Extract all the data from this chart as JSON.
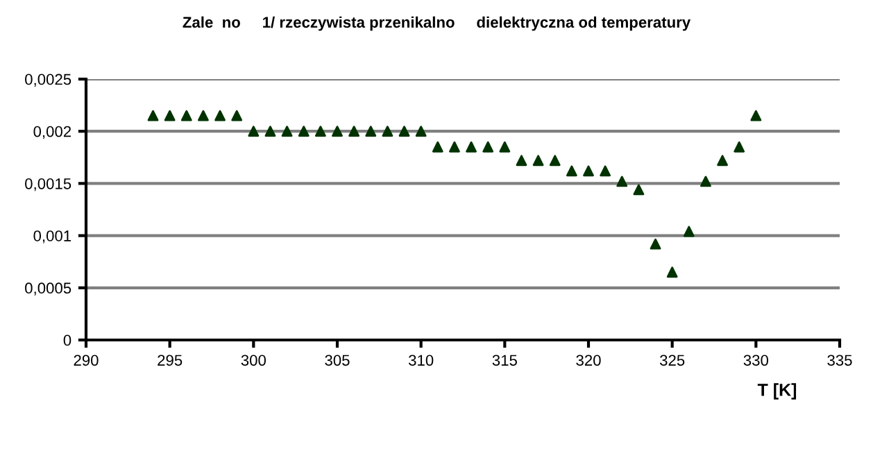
{
  "chart_data": {
    "type": "scatter",
    "title": "Zale  no     1/ rzeczywista przenikalno     dielektryczna od temperatury",
    "xlabel": "T [K]",
    "x": [
      294,
      295,
      296,
      297,
      298,
      299,
      300,
      301,
      302,
      303,
      304,
      305,
      306,
      307,
      308,
      309,
      310,
      311,
      312,
      313,
      314,
      315,
      316,
      317,
      318,
      319,
      320,
      321,
      322,
      323,
      324,
      325,
      326,
      327,
      328,
      329,
      330
    ],
    "series": [
      {
        "color": "#003300",
        "values": [
          0.00215,
          0.00215,
          0.00215,
          0.00215,
          0.00215,
          0.00215,
          0.002,
          0.002,
          0.002,
          0.002,
          0.002,
          0.002,
          0.002,
          0.002,
          0.002,
          0.002,
          0.002,
          0.00185,
          0.00185,
          0.00185,
          0.00185,
          0.00185,
          0.00172,
          0.00172,
          0.00172,
          0.00162,
          0.00162,
          0.00162,
          0.00152,
          0.00144,
          0.00092,
          0.00065,
          0.00104,
          0.00152,
          0.00172,
          0.00185,
          0.00215
        ]
      }
    ],
    "xlim": [
      290,
      335
    ],
    "xticks": [
      290,
      295,
      300,
      305,
      310,
      315,
      320,
      325,
      330,
      335
    ],
    "ylim": [
      0,
      0.0025
    ],
    "yticks": [
      {
        "value": 0,
        "label": "0"
      },
      {
        "value": 0.0005,
        "label": "0,0005"
      },
      {
        "value": 0.001,
        "label": "0,001"
      },
      {
        "value": 0.0015,
        "label": "0,0015"
      },
      {
        "value": 0.002,
        "label": "0,002"
      },
      {
        "value": 0.0025,
        "label": "0,0025"
      }
    ],
    "grid": "y",
    "marker": "triangle",
    "legend": false
  }
}
